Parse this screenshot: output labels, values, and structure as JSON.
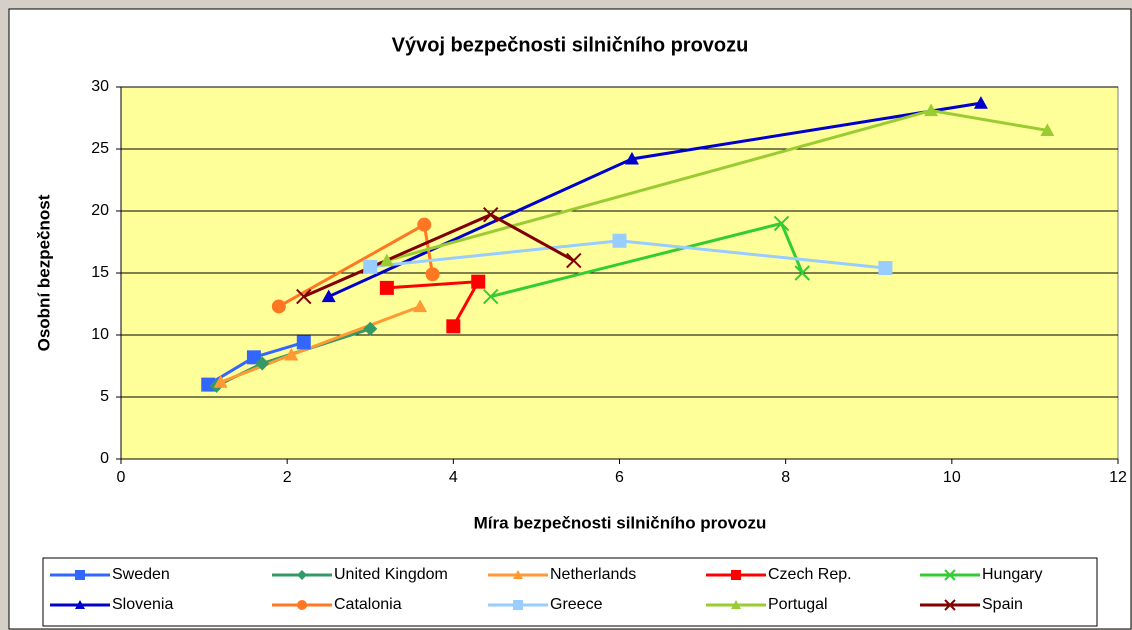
{
  "chart_data": {
    "type": "scatter",
    "title": "Vývoj bezpečnosti silničního provozu",
    "x_label": "Míra bezpečnosti silničního provozu",
    "y_label": "Osobní bezpečnost",
    "xlim": [
      0,
      12
    ],
    "xticks": [
      0,
      2,
      4,
      6,
      8,
      10,
      12
    ],
    "ylim": [
      0,
      30
    ],
    "yticks": [
      0,
      5,
      10,
      15,
      20,
      25,
      30
    ],
    "grid": true,
    "legend": "bottom",
    "plot_background": "#ffff99",
    "series": [
      {
        "name": "Sweden",
        "color": "#3366ff",
        "marker": "square",
        "x": [
          1.05,
          1.6,
          2.2
        ],
        "y": [
          6.0,
          8.2,
          9.4
        ]
      },
      {
        "name": "United Kingdom",
        "color": "#339966",
        "marker": "diamond",
        "x": [
          1.15,
          1.7,
          3.0
        ],
        "y": [
          5.9,
          7.7,
          10.5
        ]
      },
      {
        "name": "Netherlands",
        "color": "#ff9933",
        "marker": "triangle",
        "x": [
          1.2,
          2.05,
          3.6
        ],
        "y": [
          6.2,
          8.4,
          12.3
        ]
      },
      {
        "name": "Czech Rep.",
        "color": "#ff0000",
        "marker": "square",
        "x": [
          3.2,
          4.3,
          4.0
        ],
        "y": [
          13.8,
          14.3,
          10.7
        ]
      },
      {
        "name": "Hungary",
        "color": "#33cc33",
        "marker": "x",
        "x": [
          4.45,
          7.95,
          8.2
        ],
        "y": [
          13.1,
          19.0,
          15.0
        ]
      },
      {
        "name": "Slovenia",
        "color": "#0000cc",
        "marker": "triangle",
        "x": [
          2.5,
          6.15,
          10.35
        ],
        "y": [
          13.1,
          24.2,
          28.7
        ]
      },
      {
        "name": "Catalonia",
        "color": "#ff7722",
        "marker": "circle",
        "x": [
          1.9,
          3.65,
          3.75
        ],
        "y": [
          12.3,
          18.9,
          14.9
        ]
      },
      {
        "name": "Greece",
        "color": "#99ccff",
        "marker": "square",
        "x": [
          3.0,
          6.0,
          9.2
        ],
        "y": [
          15.5,
          17.6,
          15.4
        ]
      },
      {
        "name": "Portugal",
        "color": "#99cc33",
        "marker": "triangle",
        "x": [
          3.2,
          9.75,
          11.15
        ],
        "y": [
          16.0,
          28.1,
          26.5
        ]
      },
      {
        "name": "Spain",
        "color": "#800000",
        "marker": "x",
        "x": [
          2.2,
          4.45,
          5.45
        ],
        "y": [
          13.1,
          19.7,
          16.0
        ]
      }
    ]
  }
}
